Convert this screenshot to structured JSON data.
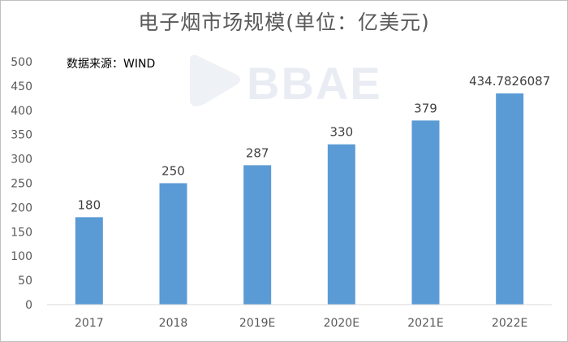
{
  "chart_data": {
    "type": "bar",
    "title": "电子烟市场规模(单位：亿美元)",
    "source_note": "数据来源：WIND",
    "watermark": "BBAE",
    "categories": [
      "2017",
      "2018",
      "2019E",
      "2020E",
      "2021E",
      "2022E"
    ],
    "values": [
      180,
      250,
      287,
      330,
      379,
      434.7826087
    ],
    "data_labels": [
      "180",
      "250",
      "287",
      "330",
      "379",
      "434.7826087"
    ],
    "ylim": [
      0,
      500
    ],
    "yticks": [
      0,
      50,
      100,
      150,
      200,
      250,
      300,
      350,
      400,
      450,
      500
    ],
    "xlabel": "",
    "ylabel": "",
    "grid": false,
    "bar_color": "#5b9bd5"
  }
}
